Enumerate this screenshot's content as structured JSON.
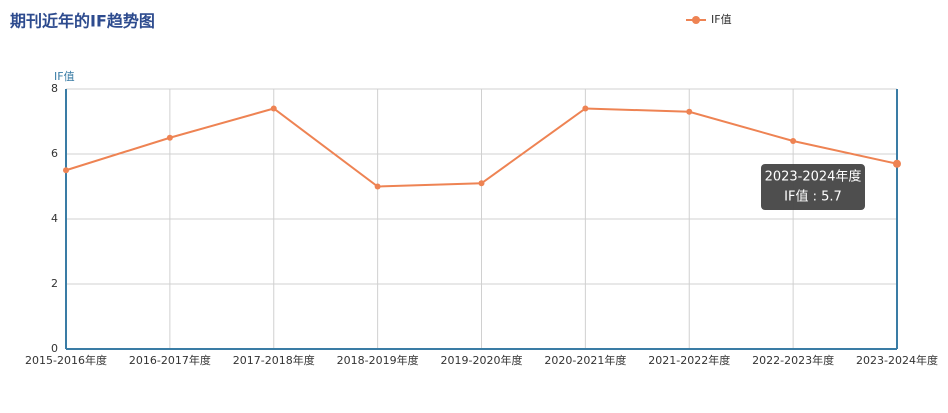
{
  "chart_data": {
    "type": "line",
    "title": "期刊近年的IF趋势图",
    "y_label": "IF值",
    "categories": [
      "2015-2016年度",
      "2016-2017年度",
      "2017-2018年度",
      "2018-2019年度",
      "2019-2020年度",
      "2020-2021年度",
      "2021-2022年度",
      "2022-2023年度",
      "2023-2024年度"
    ],
    "series": [
      {
        "name": "IF值",
        "color": "#ee8353",
        "values": [
          5.5,
          6.5,
          7.4,
          5.0,
          5.1,
          7.4,
          7.3,
          6.4,
          5.7
        ]
      }
    ],
    "ylim": [
      0,
      8
    ],
    "yticks": [
      0,
      2,
      4,
      6,
      8
    ],
    "grid": true,
    "tooltip": {
      "title": "2023-2024年度",
      "text": "IF值 : 5.7"
    }
  }
}
